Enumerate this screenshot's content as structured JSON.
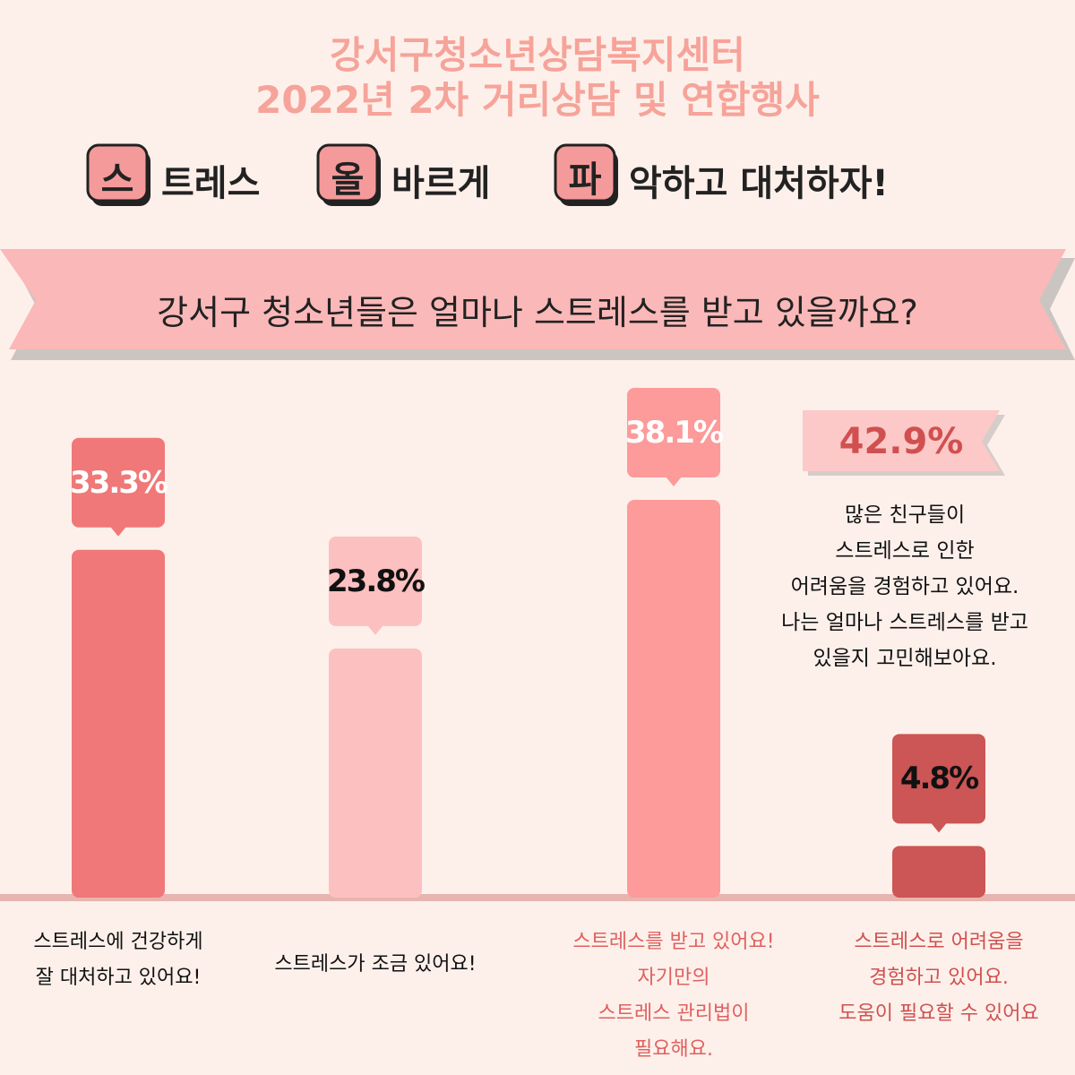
{
  "header": {
    "title_lines": [
      "강서구청소년상담복지센터",
      "2022년 2차 거리상담 및 연합행사"
    ],
    "slogan": [
      {
        "badge": "스",
        "text": "트레스"
      },
      {
        "badge": "올",
        "text": "바르게"
      },
      {
        "badge": "파",
        "text": "악하고 대처하자!"
      }
    ]
  },
  "chart_data": {
    "type": "bar",
    "title": "강서구 청소년들은 얼마나 스트레스를 받고 있을까요?",
    "categories": [
      "스트레스에 건강하게\n잘 대처하고 있어요!",
      "스트레스가 조금 있어요!",
      "스트레스를 받고 있어요!\n자기만의\n스트레스 관리법이\n필요해요.",
      "스트레스로 어려움을\n경험하고 있어요.\n도움이 필요할 수 있어요"
    ],
    "values": [
      33.3,
      23.8,
      38.1,
      4.8
    ],
    "value_labels": [
      "33.3%",
      "23.8%",
      "38.1%",
      "4.8%"
    ],
    "colors": [
      "#f07878",
      "#fdc0c0",
      "#fd9a9a",
      "#cc5555"
    ],
    "value_label_colors": [
      "#ffffff",
      "#111111",
      "#ffffff",
      "#111111"
    ],
    "category_label_colors": [
      "#111111",
      "#111111",
      "#e06060",
      "#d05050"
    ],
    "annotation": {
      "label": "42.9%",
      "text": "많은 친구들이\n스트레스로 인한\n어려움을 경험하고 있어요.\n나는 얼마나 스트레스를 받고\n있을지 고민해보아요."
    }
  }
}
